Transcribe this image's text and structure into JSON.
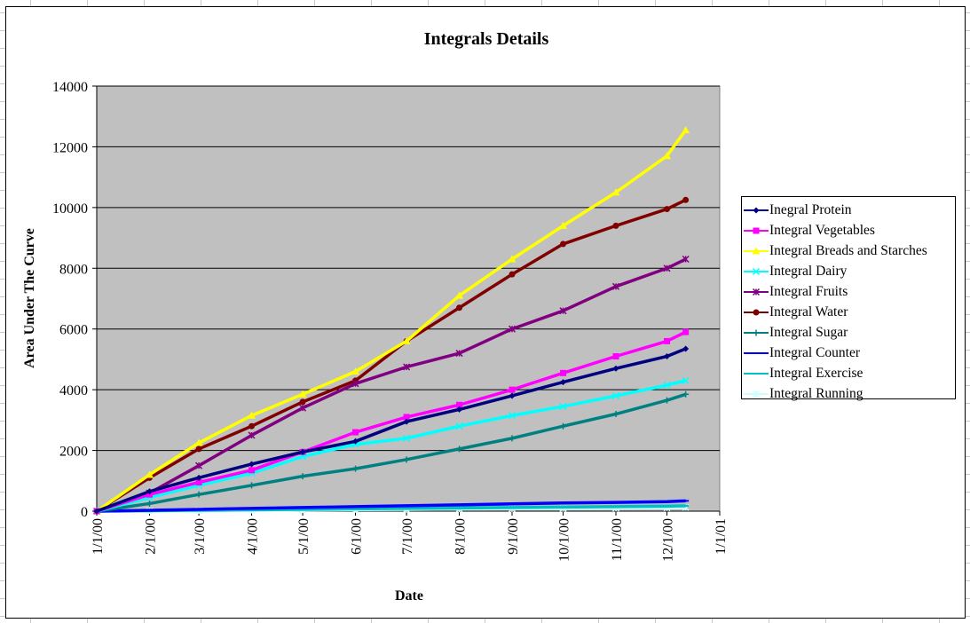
{
  "chart_data": {
    "type": "line",
    "title": "Integrals Details",
    "xlabel": "Date",
    "ylabel": "Area Under The Curve",
    "ylim": [
      0,
      14000
    ],
    "yticks": [
      0,
      2000,
      4000,
      6000,
      8000,
      10000,
      12000,
      14000
    ],
    "xlim": [
      "1/1/00",
      "1/1/01"
    ],
    "xticks": [
      "1/1/00",
      "2/1/00",
      "3/1/00",
      "4/1/00",
      "5/1/00",
      "6/1/00",
      "7/1/00",
      "8/1/00",
      "9/1/00",
      "10/1/00",
      "11/1/00",
      "12/1/00",
      "1/1/01"
    ],
    "grid": "horizontal",
    "plot_background": "#c0c0c0",
    "legend_position": "right",
    "x": [
      "1/1/00",
      "2/1/00",
      "3/1/00",
      "4/1/00",
      "5/1/00",
      "6/1/00",
      "7/1/00",
      "8/1/00",
      "9/1/00",
      "10/1/00",
      "11/1/00",
      "12/1/00",
      "12/12/00"
    ],
    "series": [
      {
        "name": "Inegral Protein",
        "color": "#000080",
        "marker": "diamond",
        "values": [
          0,
          650,
          1100,
          1550,
          1950,
          2300,
          2950,
          3350,
          3800,
          4250,
          4700,
          5100,
          5350
        ]
      },
      {
        "name": "Integral Vegetables",
        "color": "#ff00ff",
        "marker": "square",
        "values": [
          0,
          550,
          950,
          1350,
          1950,
          2600,
          3100,
          3500,
          4000,
          4550,
          5100,
          5600,
          5900
        ]
      },
      {
        "name": "Integral Breads and Starches",
        "color": "#ffff00",
        "marker": "triangle",
        "values": [
          0,
          1200,
          2250,
          3150,
          3850,
          4600,
          5600,
          7100,
          8300,
          9400,
          10500,
          11700,
          12550
        ]
      },
      {
        "name": "Integral Dairy",
        "color": "#00ffff",
        "marker": "x",
        "values": [
          0,
          450,
          850,
          1250,
          1800,
          2200,
          2400,
          2800,
          3150,
          3450,
          3800,
          4150,
          4300
        ]
      },
      {
        "name": "Integral Fruits",
        "color": "#800080",
        "marker": "asterisk",
        "values": [
          0,
          600,
          1500,
          2500,
          3400,
          4200,
          4750,
          5200,
          6000,
          6600,
          7400,
          8000,
          8300
        ]
      },
      {
        "name": "Integral Water",
        "color": "#800000",
        "marker": "circle",
        "values": [
          0,
          1100,
          2050,
          2800,
          3600,
          4300,
          5600,
          6700,
          7800,
          8800,
          9400,
          9950,
          10250
        ]
      },
      {
        "name": "Integral Sugar",
        "color": "#008080",
        "marker": "plus",
        "values": [
          0,
          250,
          550,
          850,
          1150,
          1400,
          1700,
          2050,
          2400,
          2800,
          3200,
          3650,
          3850
        ]
      },
      {
        "name": "Integral Counter",
        "color": "#0000ff",
        "marker": "dash",
        "values": [
          0,
          30,
          60,
          90,
          120,
          150,
          180,
          210,
          240,
          270,
          290,
          315,
          340
        ]
      },
      {
        "name": "Integral Exercise",
        "color": "#00c0c0",
        "marker": "dash",
        "values": [
          0,
          15,
          30,
          45,
          60,
          75,
          90,
          105,
          120,
          135,
          150,
          165,
          175
        ]
      },
      {
        "name": "Integral Running",
        "color": "#ccffff",
        "marker": "star",
        "values": [
          0,
          10,
          20,
          30,
          40,
          50,
          60,
          70,
          80,
          90,
          100,
          110,
          120
        ]
      }
    ]
  }
}
